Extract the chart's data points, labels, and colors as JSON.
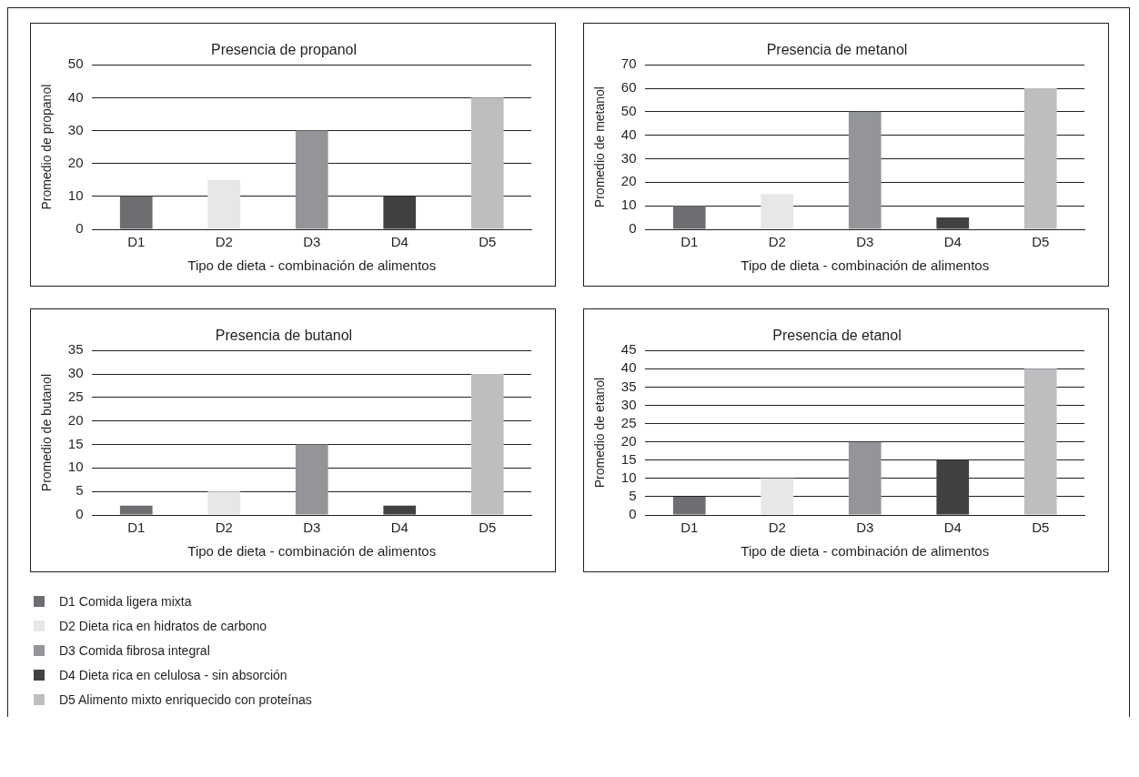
{
  "chart_data": [
    {
      "type": "bar",
      "title": "Presencia de propanol",
      "xlabel": "Tipo de dieta - combinación de alimentos",
      "ylabel": "Promedio de propanol",
      "categories": [
        "D1",
        "D2",
        "D3",
        "D4",
        "D5"
      ],
      "values": [
        10,
        15,
        30,
        10,
        40
      ],
      "colors": [
        "#6d6e71",
        "#e6e7e8",
        "#939598",
        "#414042",
        "#bcbec0"
      ],
      "ylim": [
        0,
        50
      ],
      "yticks": [
        0,
        10,
        20,
        30,
        40,
        50
      ],
      "grid": "y"
    },
    {
      "type": "bar",
      "title": "Presencia de metanol",
      "xlabel": "Tipo de dieta - combinación de alimentos",
      "ylabel": "Promedio de metanol",
      "categories": [
        "D1",
        "D2",
        "D3",
        "D4",
        "D5"
      ],
      "values": [
        10,
        15,
        50,
        5,
        60
      ],
      "colors": [
        "#6d6e71",
        "#e6e7e8",
        "#939598",
        "#414042",
        "#bcbec0"
      ],
      "ylim": [
        0,
        70
      ],
      "yticks": [
        0,
        10,
        20,
        30,
        40,
        50,
        60,
        70
      ],
      "grid": "y"
    },
    {
      "type": "bar",
      "title": "Presencia de butanol",
      "xlabel": "Tipo de dieta - combinación de alimentos",
      "ylabel": "Promedio de butanol",
      "categories": [
        "D1",
        "D2",
        "D3",
        "D4",
        "D5"
      ],
      "values": [
        2,
        5,
        15,
        2,
        30
      ],
      "colors": [
        "#6d6e71",
        "#e6e7e8",
        "#939598",
        "#414042",
        "#bcbec0"
      ],
      "ylim": [
        0,
        35
      ],
      "yticks": [
        0,
        5,
        10,
        15,
        20,
        25,
        30,
        35
      ],
      "grid": "y"
    },
    {
      "type": "bar",
      "title": "Presencia de etanol",
      "xlabel": "Tipo de dieta - combinación de alimentos",
      "ylabel": "Promedio de etanol",
      "categories": [
        "D1",
        "D2",
        "D3",
        "D4",
        "D5"
      ],
      "values": [
        5,
        10,
        20,
        15,
        40
      ],
      "colors": [
        "#6d6e71",
        "#e6e7e8",
        "#939598",
        "#414042",
        "#bcbec0"
      ],
      "ylim": [
        0,
        45
      ],
      "yticks": [
        0,
        5,
        10,
        15,
        20,
        25,
        30,
        35,
        40,
        45
      ],
      "grid": "y"
    },
    {
      "type": "other",
      "categories": [
        "D1 Comida ligera mixta",
        "D2 Dieta rica en hidratos de carbono",
        "D3 Comida fibrosa integral",
        "D4 Dieta rica en celulosa - sin absorción",
        "D5 Alimento mixto enriquecido con proteínas"
      ],
      "colors": [
        "#6d6e71",
        "#e6e7e8",
        "#939598",
        "#414042",
        "#bcbec0"
      ]
    }
  ]
}
